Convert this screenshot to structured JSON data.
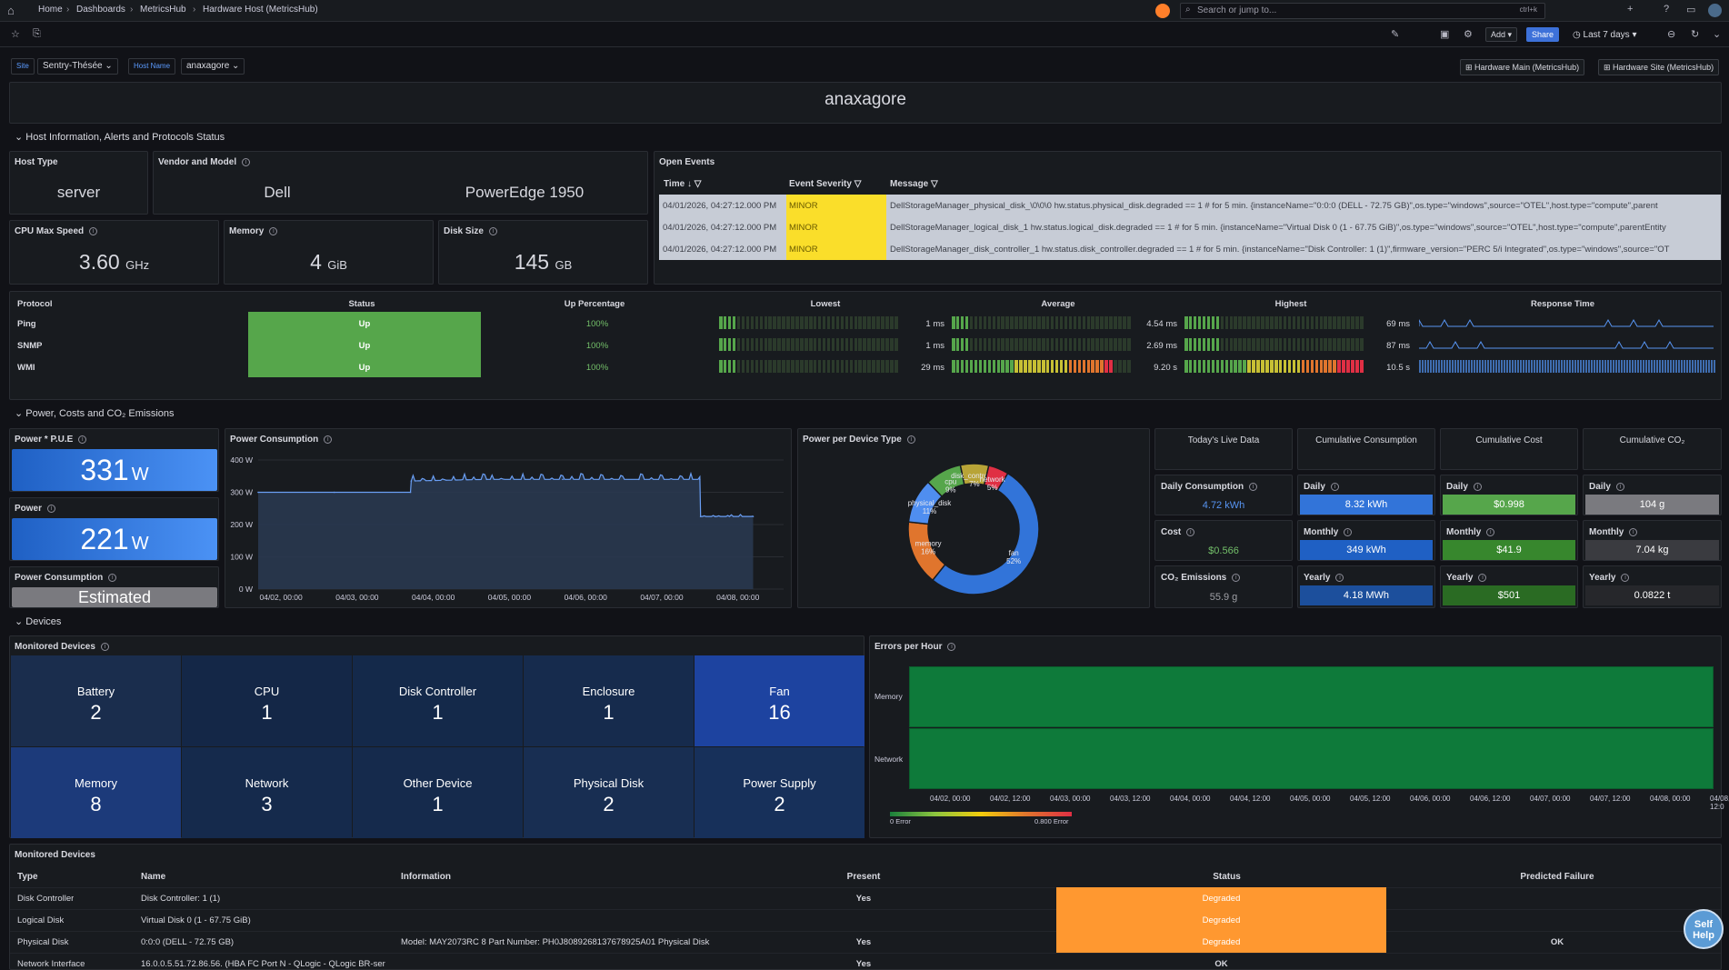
{
  "nav": {
    "breadcrumbs": [
      "Home",
      "Dashboards",
      "MetricsHub",
      "Hardware Host (MetricsHub)"
    ],
    "search_placeholder": "Search or jump to...",
    "search_shortcut": "ctrl+k",
    "add_label": "Add",
    "share_label": "Share",
    "time_range": "Last 7 days"
  },
  "variables": {
    "site_label": "Site",
    "site_value": "Sentry-Thésée",
    "host_label": "Host Name",
    "host_value": "anaxagore",
    "link_main": "Hardware Main (MetricsHub)",
    "link_site": "Hardware Site (MetricsHub)"
  },
  "host_title": "anaxagore",
  "sections": {
    "host_info": "Host Information, Alerts and Protocols Status",
    "power": "Power, Costs and CO₂ Emissions",
    "devices": "Devices"
  },
  "host_info": {
    "host_type_title": "Host Type",
    "host_type": "server",
    "vendor_title": "Vendor and Model",
    "vendor": "Dell",
    "model": "PowerEdge 1950",
    "cpu_title": "CPU Max Speed",
    "cpu_value": "3.60",
    "cpu_unit": "GHz",
    "mem_title": "Memory",
    "mem_value": "4",
    "mem_unit": "GiB",
    "disk_title": "Disk Size",
    "disk_value": "145",
    "disk_unit": "GB"
  },
  "events": {
    "title": "Open Events",
    "columns": [
      "Time",
      "Event Severity",
      "Message"
    ],
    "rows": [
      {
        "time": "04/01/2026, 04:27:12.000 PM",
        "severity": "MINOR",
        "message": "DellStorageManager_physical_disk_\\0\\0\\0 hw.status.physical_disk.degraded == 1 # for 5 min. {instanceName=\"0:0:0 (DELL - 72.75 GB)\",os.type=\"windows\",source=\"OTEL\",host.type=\"compute\",parent"
      },
      {
        "time": "04/01/2026, 04:27:12.000 PM",
        "severity": "MINOR",
        "message": "DellStorageManager_logical_disk_1 hw.status.logical_disk.degraded == 1 # for 5 min. {instanceName=\"Virtual Disk 0 (1 - 67.75 GiB)\",os.type=\"windows\",source=\"OTEL\",host.type=\"compute\",parentEntity"
      },
      {
        "time": "04/01/2026, 04:27:12.000 PM",
        "severity": "MINOR",
        "message": "DellStorageManager_disk_controller_1 hw.status.disk_controller.degraded == 1 # for 5 min. {instanceName=\"Disk Controller: 1 (1)\",firmware_version=\"PERC 5/i Integrated\",os.type=\"windows\",source=\"OT"
      }
    ]
  },
  "protocols": {
    "columns": [
      "Protocol",
      "Status",
      "Up Percentage",
      "Lowest",
      "Average",
      "Highest",
      "Response Time"
    ],
    "rows": [
      {
        "name": "Ping",
        "status": "Up",
        "up": "100%",
        "lowest": "1 ms",
        "average": "4.54 ms",
        "highest": "69 ms",
        "low_level": 0.1,
        "avg_level": 0.1,
        "high_level": 0.2
      },
      {
        "name": "SNMP",
        "status": "Up",
        "up": "100%",
        "lowest": "1 ms",
        "average": "2.69 ms",
        "highest": "87 ms",
        "low_level": 0.1,
        "avg_level": 0.1,
        "high_level": 0.2
      },
      {
        "name": "WMI",
        "status": "Up",
        "up": "100%",
        "lowest": "29 ms",
        "average": "9.20 s",
        "highest": "10.5 s",
        "low_level": 0.1,
        "avg_level": 0.9,
        "high_level": 1.0
      }
    ]
  },
  "power": {
    "pue_title": "Power * P.U.E",
    "pue_value": "331",
    "pue_unit": "W",
    "power_title": "Power",
    "power_value": "221",
    "power_unit": "W",
    "consumption_title": "Power Consumption",
    "consumption_value": "Estimated",
    "chart_title": "Power Consumption",
    "device_type_title": "Power per Device Type"
  },
  "live": {
    "today_title": "Today's Live Data",
    "cum_consumption_title": "Cumulative Consumption",
    "cum_cost_title": "Cumulative Cost",
    "cum_co2_title": "Cumulative CO₂",
    "daily_consumption_title": "Daily Consumption",
    "daily_consumption": "4.72 kWh",
    "cost_title": "Cost",
    "cost": "$0.566",
    "co2_title": "CO₂ Emissions",
    "co2": "55.9 g",
    "daily_label": "Daily",
    "monthly_label": "Monthly",
    "yearly_label": "Yearly",
    "cons_daily": "8.32 kWh",
    "cons_monthly": "349 kWh",
    "cons_yearly": "4.18 MWh",
    "cost_daily": "$0.998",
    "cost_monthly": "$41.9",
    "cost_yearly": "$501",
    "co2_daily": "104 g",
    "co2_monthly": "7.04 kg",
    "co2_yearly": "0.0822 t"
  },
  "devices": {
    "title": "Monitored Devices",
    "tiles": [
      {
        "name": "Battery",
        "count": "2"
      },
      {
        "name": "CPU",
        "count": "1"
      },
      {
        "name": "Disk Controller",
        "count": "1"
      },
      {
        "name": "Enclosure",
        "count": "1"
      },
      {
        "name": "Fan",
        "count": "16"
      },
      {
        "name": "Memory",
        "count": "8"
      },
      {
        "name": "Network",
        "count": "3"
      },
      {
        "name": "Other Device",
        "count": "1"
      },
      {
        "name": "Physical Disk",
        "count": "2"
      },
      {
        "name": "Power Supply",
        "count": "2"
      }
    ],
    "errors_title": "Errors per Hour",
    "errors_rows": [
      "Memory",
      "Network"
    ],
    "errors_legend_min": "0 Error",
    "errors_legend_max": "0.800 Error",
    "table_title": "Monitored Devices",
    "table_columns": [
      "Type",
      "Name",
      "Information",
      "Present",
      "Status",
      "Predicted Failure"
    ],
    "table_rows": [
      {
        "type": "Disk Controller",
        "name": "Disk Controller: 1 (1)",
        "info": "",
        "present": "Yes",
        "status": "Degraded",
        "failure": ""
      },
      {
        "type": "Logical Disk",
        "name": "Virtual Disk 0 (1 - 67.75 GiB)",
        "info": "",
        "present": "",
        "status": "Degraded",
        "failure": ""
      },
      {
        "type": "Physical Disk",
        "name": "0:0:0 (DELL - 72.75 GB)",
        "info": "Model: MAY2073RC 8 Part Number: PH0J8089268137678925A01 Physical Disk",
        "present": "Yes",
        "status": "Degraded",
        "failure": "OK"
      },
      {
        "type": "Network Interface",
        "name": "16.0.0.5.51.72.86.56. (HBA FC Port N - QLogic - QLogic BR-ser",
        "info": "",
        "present": "Yes",
        "status": "OK",
        "failure": ""
      }
    ]
  },
  "self_help": "Self Help",
  "colors": {
    "green": "#56a64b",
    "blue": "#3274d9",
    "yellow": "#fade2a",
    "orange": "#ff9830",
    "red": "#e02f44"
  },
  "chart_data": [
    {
      "type": "line",
      "title": "Power Consumption",
      "xlabel": "",
      "ylabel": "",
      "ylim": [
        0,
        400
      ],
      "y_ticks": [
        "0 W",
        "100 W",
        "200 W",
        "300 W",
        "400 W"
      ],
      "x_ticks": [
        "04/02, 00:00",
        "04/03, 00:00",
        "04/04, 00:00",
        "04/05, 00:00",
        "04/06, 00:00",
        "04/07, 00:00",
        "04/08, 00:00"
      ],
      "x": [
        0,
        1,
        2,
        2.01,
        3,
        4,
        5,
        5.8,
        5.81,
        6,
        6.5
      ],
      "values": [
        300,
        300,
        300,
        335,
        340,
        340,
        340,
        340,
        225,
        225,
        225
      ]
    },
    {
      "type": "pie",
      "title": "Power per Device Type",
      "categories": [
        "fan",
        "memory",
        "physical_disk",
        "cpu",
        "disk_controller",
        "network"
      ],
      "values": [
        52,
        16,
        11,
        9,
        7,
        5
      ],
      "labels": [
        "52%",
        "16%",
        "11%",
        "9%",
        "7%",
        "5%"
      ],
      "colors": [
        "#3274d9",
        "#e0752d",
        "#4f8ef0",
        "#56a64b",
        "#b8a437",
        "#e02f44"
      ]
    }
  ]
}
